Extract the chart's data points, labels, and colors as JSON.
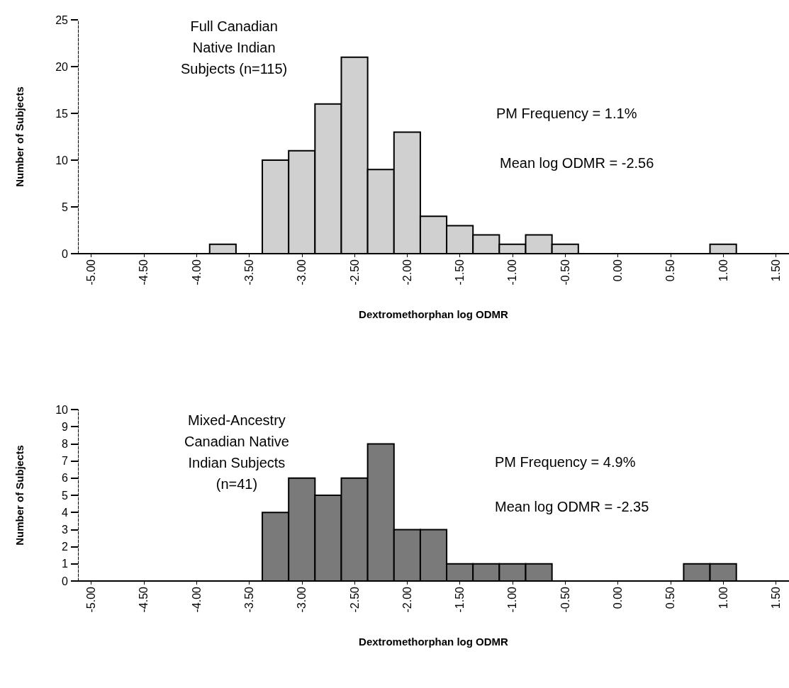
{
  "chart_data": [
    {
      "type": "histogram",
      "xlabel": "Dextromethorphan log ODMR",
      "ylabel": "Number of Subjects",
      "annotations": [
        "Full Canadian\nNative Indian\nSubjects (n=115)",
        "PM Frequency = 1.1%",
        "Mean log ODMR = -2.56"
      ],
      "bins": [
        -5.125,
        -4.875,
        -4.625,
        -4.375,
        -4.125,
        -3.875,
        -3.625,
        -3.375,
        -3.125,
        -2.875,
        -2.625,
        -2.375,
        -2.125,
        -1.875,
        -1.625,
        -1.375,
        -1.125,
        -0.875,
        -0.625,
        -0.375,
        -0.125,
        0.125,
        0.375,
        0.625,
        0.875,
        1.125,
        1.375,
        1.625
      ],
      "values": [
        0,
        0,
        0,
        0,
        0,
        1,
        0,
        10,
        11,
        16,
        21,
        9,
        13,
        4,
        3,
        2,
        1,
        2,
        1,
        0,
        0,
        0,
        0,
        0,
        1,
        0,
        0
      ],
      "color": "#d0d0d0",
      "xlim": [
        -5.125,
        1.625
      ],
      "xticks": [
        {
          "value": -5,
          "label": "-5.00"
        },
        {
          "value": -4.5,
          "label": "-4.50"
        },
        {
          "value": -4,
          "label": "-4.00"
        },
        {
          "value": -3.5,
          "label": "-3.50"
        },
        {
          "value": -3,
          "label": "-3.00"
        },
        {
          "value": -2.5,
          "label": "-2.50"
        },
        {
          "value": -2,
          "label": "-2.00"
        },
        {
          "value": -1.5,
          "label": "-1.50"
        },
        {
          "value": -1,
          "label": "-1.00"
        },
        {
          "value": -0.5,
          "label": "-0.50"
        },
        {
          "value": 0,
          "label": "0.00"
        },
        {
          "value": 0.5,
          "label": "0.50"
        },
        {
          "value": 1,
          "label": "1.00"
        },
        {
          "value": 1.5,
          "label": "1.50"
        }
      ],
      "ylim": [
        0,
        25
      ],
      "yticks": [
        0,
        5,
        10,
        15,
        20,
        25
      ],
      "grid": false
    },
    {
      "type": "histogram",
      "xlabel": "Dextromethorphan log ODMR",
      "ylabel": "Number of Subjects",
      "annotations": [
        "Mixed-Ancestry\nCanadian Native\nIndian Subjects\n(n=41)",
        "PM Frequency = 4.9%",
        "Mean log ODMR = -2.35"
      ],
      "bins": [
        -5.125,
        -4.875,
        -4.625,
        -4.375,
        -4.125,
        -3.875,
        -3.625,
        -3.375,
        -3.125,
        -2.875,
        -2.625,
        -2.375,
        -2.125,
        -1.875,
        -1.625,
        -1.375,
        -1.125,
        -0.875,
        -0.625,
        -0.375,
        -0.125,
        0.125,
        0.375,
        0.625,
        0.875,
        1.125,
        1.375,
        1.625
      ],
      "values": [
        0,
        0,
        0,
        0,
        0,
        0,
        0,
        4,
        6,
        5,
        6,
        8,
        3,
        3,
        1,
        1,
        1,
        1,
        0,
        0,
        0,
        0,
        0,
        1,
        1,
        0,
        0
      ],
      "color": "#7a7a7a",
      "xlim": [
        -5.125,
        1.625
      ],
      "xticks": [
        {
          "value": -5,
          "label": "-5.00"
        },
        {
          "value": -4.5,
          "label": "-4.50"
        },
        {
          "value": -4,
          "label": "-4.00"
        },
        {
          "value": -3.5,
          "label": "-3.50"
        },
        {
          "value": -3,
          "label": "-3.00"
        },
        {
          "value": -2.5,
          "label": "-2.50"
        },
        {
          "value": -2,
          "label": "-2.00"
        },
        {
          "value": -1.5,
          "label": "-1.50"
        },
        {
          "value": -1,
          "label": "-1.00"
        },
        {
          "value": -0.5,
          "label": "-0.50"
        },
        {
          "value": 0,
          "label": "0.00"
        },
        {
          "value": 0.5,
          "label": "0.50"
        },
        {
          "value": 1,
          "label": "1.00"
        },
        {
          "value": 1.5,
          "label": "1.50"
        }
      ],
      "ylim": [
        0,
        10
      ],
      "yticks": [
        0,
        1,
        2,
        3,
        4,
        5,
        6,
        7,
        8,
        9,
        10
      ],
      "grid": false
    }
  ]
}
